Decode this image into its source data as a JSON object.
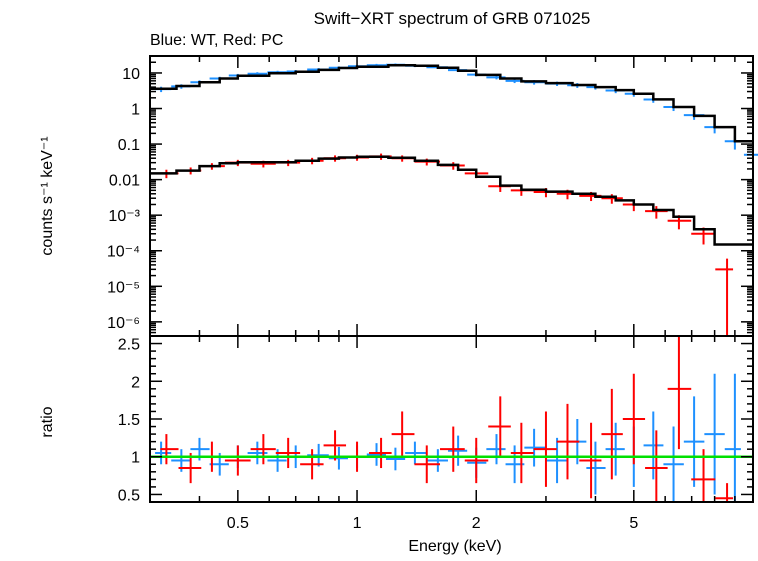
{
  "chart_data": {
    "type": "scatter",
    "title": "Swift−XRT spectrum of GRB 071025",
    "subtitle": "Blue: WT, Red: PC",
    "xlabel": "Energy (keV)",
    "x_scale": "log",
    "xlim": [
      0.3,
      10
    ],
    "x_ticks": [
      0.5,
      1,
      2,
      5
    ],
    "x_tick_labels": [
      "0.5",
      "1",
      "2",
      "5"
    ],
    "colors": {
      "wt": "#1e90ff",
      "pc": "#ff0000",
      "model": "#000000",
      "unity": "#00e000"
    },
    "panels": [
      {
        "name": "spectrum",
        "ylabel": "counts s⁻¹ keV⁻¹",
        "y_scale": "log",
        "ylim": [
          4e-07,
          30
        ],
        "y_ticks": [
          1e-06,
          1e-05,
          0.0001,
          0.001,
          0.01,
          0.1,
          1,
          10
        ],
        "y_tick_labels": [
          "10⁻⁶",
          "10⁻⁵",
          "10⁻⁴",
          "10⁻³",
          "0.01",
          "0.1",
          "1",
          "10"
        ],
        "series": [
          {
            "key": "wt",
            "x": [
              0.32,
              0.36,
              0.4,
              0.45,
              0.5,
              0.56,
              0.63,
              0.7,
              0.8,
              0.9,
              1.0,
              1.12,
              1.25,
              1.4,
              1.6,
              1.8,
              2.0,
              2.25,
              2.5,
              2.8,
              3.2,
              3.6,
              4.0,
              4.5,
              5.0,
              5.6,
              6.3,
              7.1,
              8.0,
              9.0,
              10.0
            ],
            "y": [
              3.5,
              4.2,
              5.5,
              7.0,
              8.5,
              9.5,
              10.5,
              11.0,
              12.5,
              14.0,
              15.5,
              16.5,
              17.0,
              16.0,
              14.5,
              12.0,
              9.0,
              7.5,
              6.0,
              5.5,
              5.0,
              4.5,
              4.0,
              3.2,
              2.6,
              1.8,
              1.1,
              0.65,
              0.3,
              0.12,
              0.05
            ],
            "err": [
              0.6,
              0.6,
              0.7,
              0.8,
              0.9,
              1.0,
              1.0,
              1.1,
              1.2,
              1.3,
              1.4,
              1.5,
              1.5,
              1.4,
              1.3,
              1.2,
              1.0,
              0.9,
              0.8,
              0.8,
              0.7,
              0.7,
              0.6,
              0.5,
              0.45,
              0.35,
              0.25,
              0.17,
              0.1,
              0.05,
              0.03
            ]
          },
          {
            "key": "pc",
            "x": [
              0.33,
              0.38,
              0.43,
              0.5,
              0.58,
              0.67,
              0.77,
              0.88,
              1.0,
              1.15,
              1.3,
              1.5,
              1.75,
              2.0,
              2.3,
              2.6,
              3.0,
              3.4,
              3.9,
              4.4,
              5.0,
              5.7,
              6.5,
              7.5,
              8.6
            ],
            "y": [
              0.015,
              0.018,
              0.024,
              0.03,
              0.028,
              0.03,
              0.034,
              0.04,
              0.042,
              0.045,
              0.04,
              0.032,
              0.025,
              0.015,
              0.0065,
              0.005,
              0.0045,
              0.004,
              0.0035,
              0.003,
              0.002,
              0.0013,
              0.0007,
              0.0003,
              3e-05
            ],
            "err": [
              0.004,
              0.004,
              0.005,
              0.006,
              0.006,
              0.006,
              0.007,
              0.008,
              0.008,
              0.009,
              0.008,
              0.007,
              0.006,
              0.004,
              0.002,
              0.0015,
              0.0013,
              0.0012,
              0.001,
              0.0009,
              0.0007,
              0.0005,
              0.0003,
              0.00015,
              3e-05
            ]
          },
          {
            "key": "model_wt",
            "x": [
              0.3,
              0.35,
              0.4,
              0.45,
              0.5,
              0.6,
              0.7,
              0.8,
              0.9,
              1.0,
              1.2,
              1.4,
              1.6,
              1.8,
              2.0,
              2.3,
              2.6,
              3.0,
              3.5,
              4.0,
              4.5,
              5.0,
              5.6,
              6.3,
              7.1,
              8.0,
              9.0,
              10.0
            ],
            "y": [
              3.6,
              4.3,
              5.5,
              7.0,
              8.3,
              9.8,
              10.8,
              12.2,
              13.8,
              15.0,
              16.5,
              16.0,
              14.0,
              11.5,
              8.8,
              7.0,
              5.8,
              5.2,
              4.6,
              4.0,
              3.3,
              2.6,
              1.8,
              1.1,
              0.62,
              0.3,
              0.12,
              0.05
            ]
          },
          {
            "key": "model_pc",
            "x": [
              0.3,
              0.35,
              0.4,
              0.45,
              0.5,
              0.6,
              0.7,
              0.8,
              0.9,
              1.0,
              1.2,
              1.4,
              1.6,
              1.8,
              2.0,
              2.3,
              2.6,
              3.0,
              3.5,
              4.0,
              4.5,
              5.0,
              5.6,
              6.3,
              7.1,
              8.0,
              10.0
            ],
            "y": [
              0.015,
              0.018,
              0.024,
              0.029,
              0.031,
              0.031,
              0.034,
              0.039,
              0.042,
              0.044,
              0.041,
              0.034,
              0.026,
              0.019,
              0.012,
              0.0068,
              0.0052,
              0.0046,
              0.004,
              0.0033,
              0.0026,
              0.002,
              0.0014,
              0.0009,
              0.0004,
              0.00015,
              6e-05
            ]
          }
        ]
      },
      {
        "name": "ratio",
        "ylabel": "ratio",
        "y_scale": "linear",
        "ylim": [
          0.4,
          2.6
        ],
        "y_ticks": [
          0.5,
          1,
          1.5,
          2,
          2.5
        ],
        "y_tick_labels": [
          "0.5",
          "1",
          "1.5",
          "2",
          "2.5"
        ],
        "unity_line": 1,
        "series": [
          {
            "key": "wt",
            "x": [
              0.32,
              0.36,
              0.4,
              0.45,
              0.5,
              0.56,
              0.63,
              0.7,
              0.8,
              0.9,
              1.0,
              1.12,
              1.25,
              1.4,
              1.6,
              1.8,
              2.0,
              2.25,
              2.5,
              2.8,
              3.2,
              3.6,
              4.0,
              4.5,
              5.0,
              5.6,
              6.3,
              7.1,
              8.0,
              9.0
            ],
            "y": [
              1.05,
              0.95,
              1.1,
              0.9,
              1.0,
              1.05,
              0.95,
              1.0,
              1.02,
              0.98,
              1.0,
              1.03,
              0.97,
              1.05,
              0.95,
              1.08,
              0.92,
              1.1,
              0.9,
              1.12,
              0.95,
              1.2,
              0.85,
              1.1,
              1.0,
              1.15,
              0.9,
              1.2,
              1.3,
              1.1
            ],
            "err": [
              0.15,
              0.15,
              0.15,
              0.15,
              0.15,
              0.15,
              0.15,
              0.15,
              0.15,
              0.15,
              0.15,
              0.15,
              0.15,
              0.15,
              0.15,
              0.2,
              0.2,
              0.2,
              0.25,
              0.25,
              0.3,
              0.3,
              0.35,
              0.35,
              0.4,
              0.45,
              0.5,
              0.6,
              0.8,
              1.0
            ]
          },
          {
            "key": "pc",
            "x": [
              0.33,
              0.38,
              0.43,
              0.5,
              0.58,
              0.67,
              0.77,
              0.88,
              1.0,
              1.15,
              1.3,
              1.5,
              1.75,
              2.0,
              2.3,
              2.6,
              3.0,
              3.4,
              3.9,
              4.4,
              5.0,
              5.7,
              6.5,
              7.5,
              8.6
            ],
            "y": [
              1.1,
              0.85,
              1.0,
              0.95,
              1.1,
              1.05,
              0.9,
              1.15,
              1.0,
              1.05,
              1.3,
              0.9,
              1.1,
              0.95,
              1.4,
              1.05,
              1.1,
              1.2,
              0.95,
              1.3,
              1.5,
              0.85,
              1.9,
              0.7,
              0.45
            ],
            "err": [
              0.2,
              0.2,
              0.2,
              0.2,
              0.2,
              0.2,
              0.2,
              0.2,
              0.2,
              0.2,
              0.3,
              0.25,
              0.3,
              0.3,
              0.4,
              0.4,
              0.5,
              0.5,
              0.5,
              0.6,
              0.6,
              0.5,
              0.8,
              0.4,
              0.2
            ]
          }
        ]
      }
    ]
  }
}
